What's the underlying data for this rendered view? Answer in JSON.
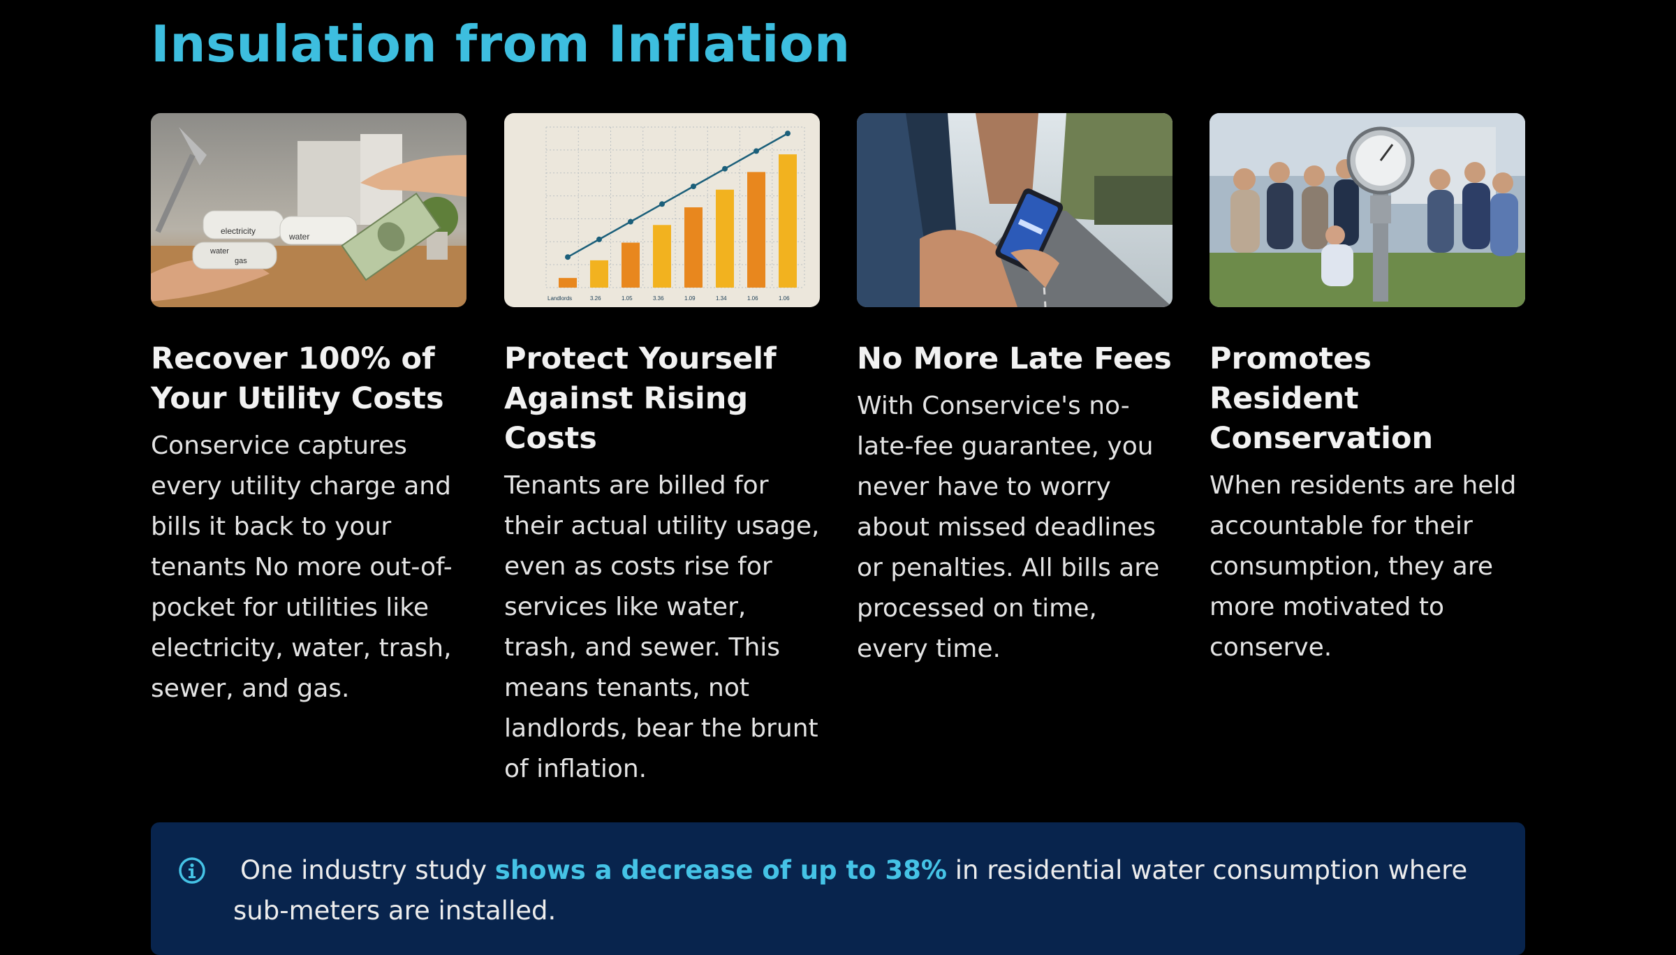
{
  "page": {
    "title": "Insulation from Inflation"
  },
  "cards": [
    {
      "image_label": "Bills being handed over with cash",
      "image_texts": [
        "electricity",
        "water",
        "water",
        "gas"
      ],
      "title": "Recover 100% of Your Utility Costs",
      "text": "Conservice captures every utility charge and bills it back to your tenants No more out-of-pocket for utilities like electricity, water, trash, sewer, and gas."
    },
    {
      "image_label": "Rising bar chart illustration",
      "image_texts": [
        "Landlords",
        "3.26",
        "1.05",
        "3.36",
        "1.09",
        "1.34",
        "1.06",
        "1.06"
      ],
      "title": "Protect Yourself Against Rising Costs",
      "text": "Tenants are billed for their actual utility usage, even as costs rise for services like water, trash, and sewer. This means tenants, not landlords, bear the brunt of inflation."
    },
    {
      "image_label": "Person using a phone on a street",
      "title": "No More Late Fees",
      "text": "With Conservice's no-late-fee guarantee, you never have to worry about missed deadlines or penalties. All bills are processed on time, every time."
    },
    {
      "image_label": "Residents gathered around a water meter",
      "title": "Promotes Resident Conservation",
      "text": "When residents are held accountable for their consumption, they are more motivated to conserve."
    }
  ],
  "callout": {
    "icon": "info-icon",
    "text_before": "One industry study ",
    "text_highlight": "shows a decrease of up to 38%",
    "text_after": " in residential water consumption where sub-meters are installed."
  },
  "colors": {
    "accent": "#3dbedf",
    "background": "#000000",
    "callout_bg": "#08244d",
    "bar_orange": "#e8871e",
    "bar_yellow": "#f2b21f"
  }
}
